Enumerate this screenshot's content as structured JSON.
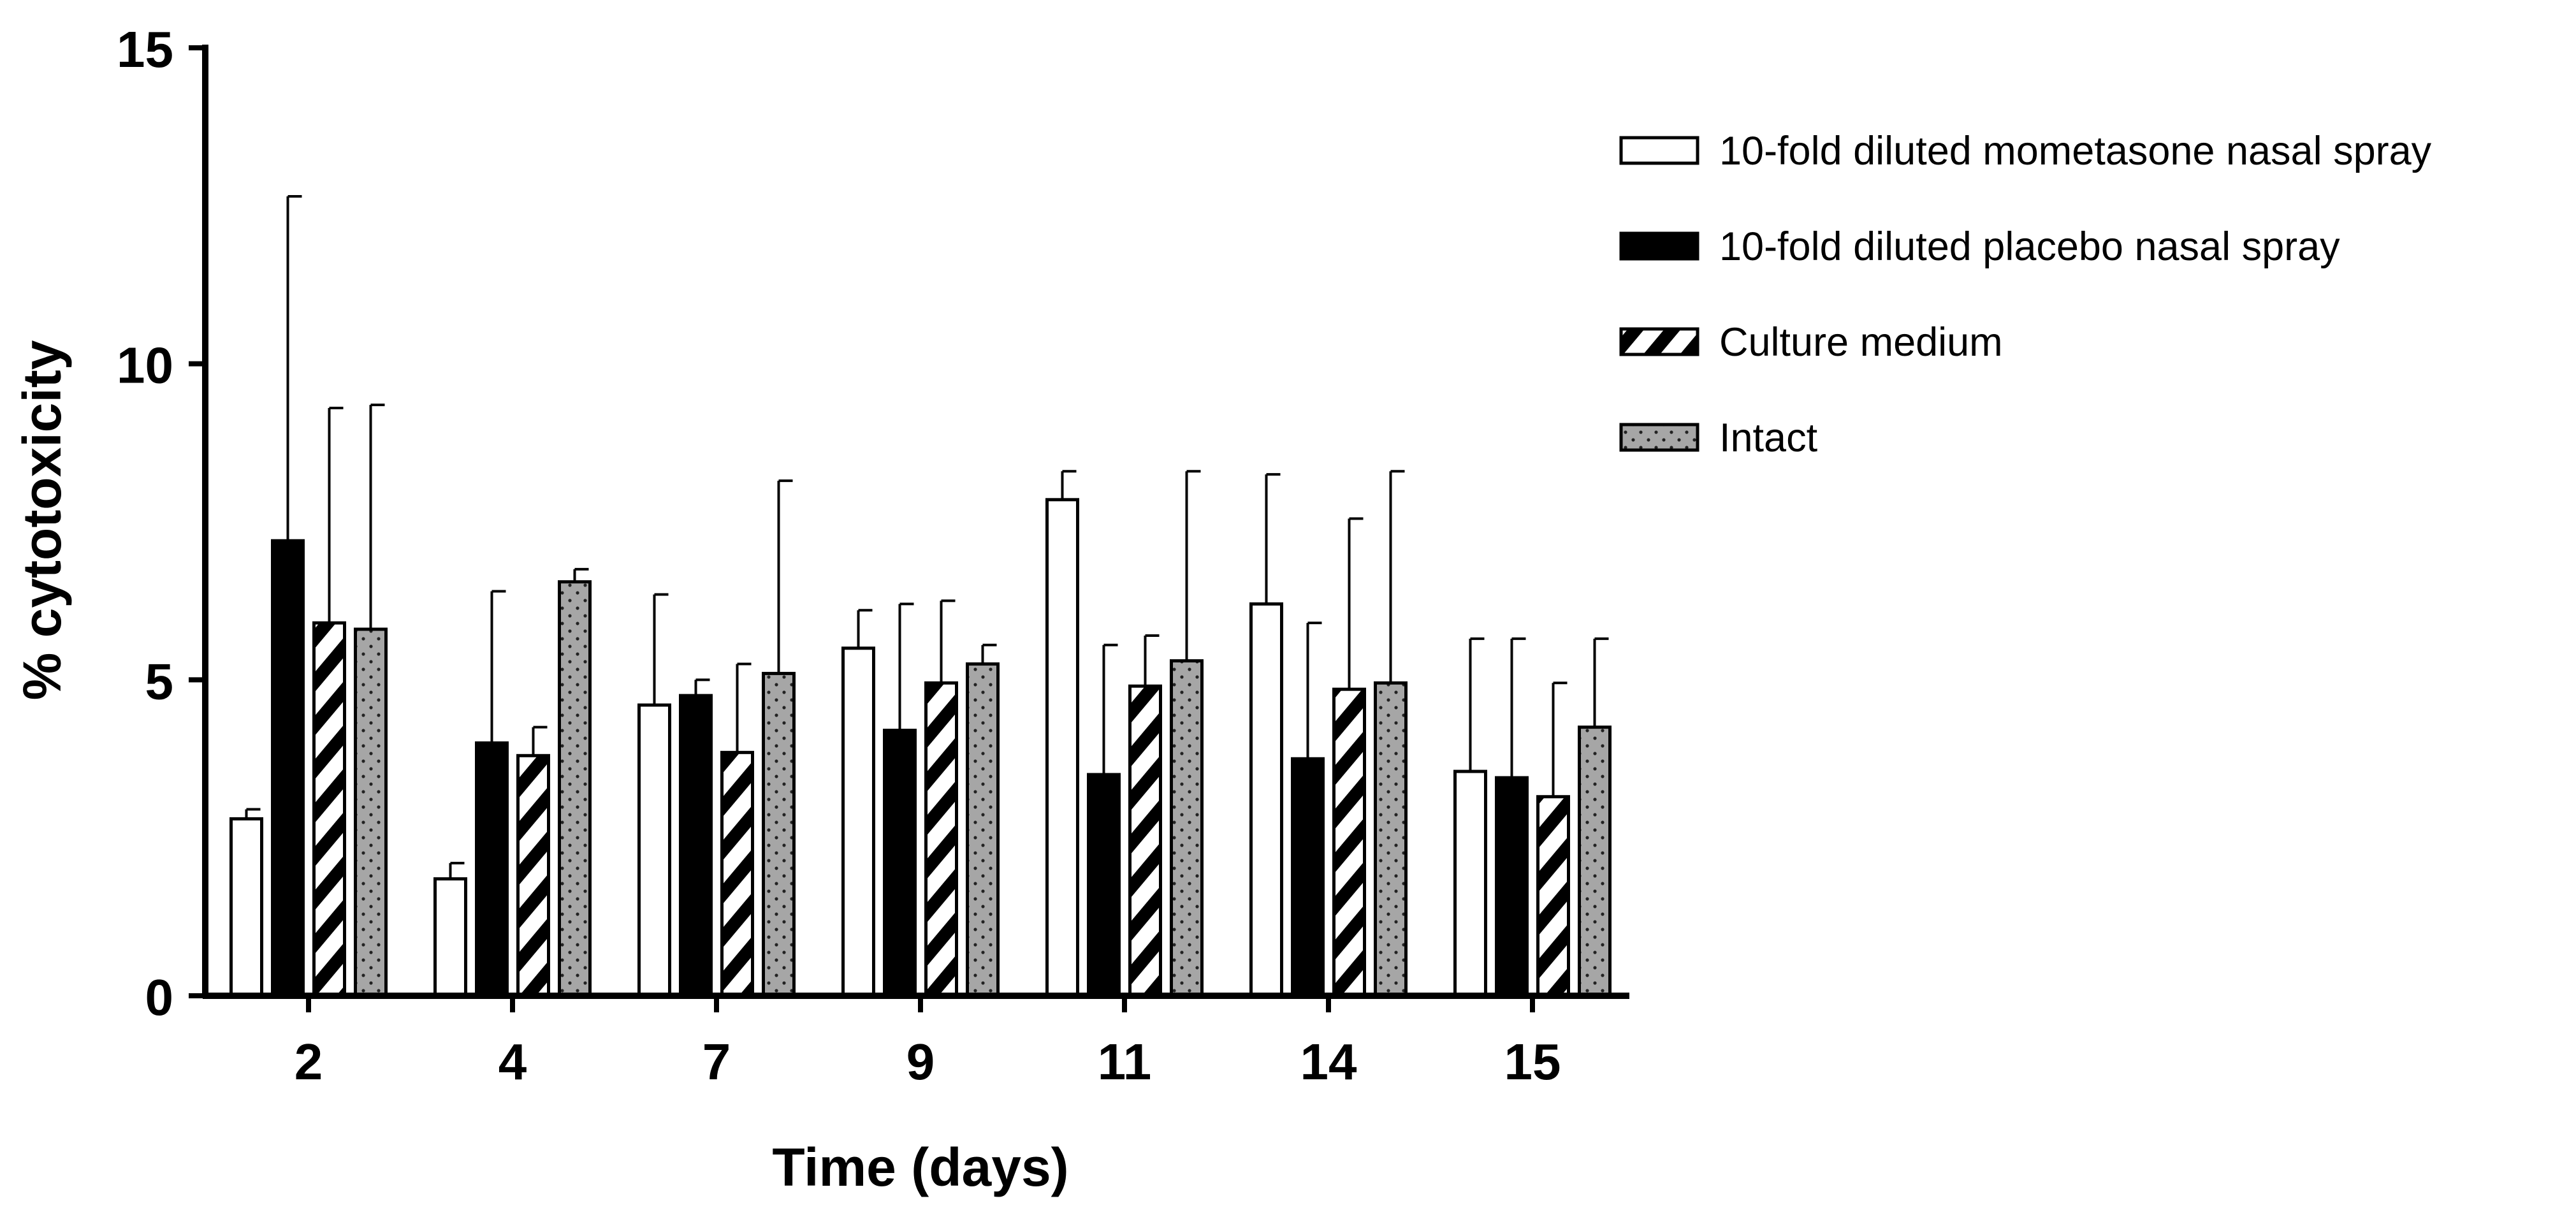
{
  "chart_data": {
    "type": "bar",
    "title": "",
    "xlabel": "Time (days)",
    "ylabel": "% cytotoxicity",
    "ylim": [
      0,
      15
    ],
    "yticks": [
      0,
      5,
      10,
      15
    ],
    "ytick_labels": [
      "0",
      "5",
      "10",
      "15"
    ],
    "categories": [
      "2",
      "4",
      "7",
      "9",
      "11",
      "14",
      "15"
    ],
    "grid": false,
    "legend_position": "top-right",
    "series": [
      {
        "name": "10-fold diluted mometasone nasal spray",
        "pattern": "white",
        "values": [
          2.8,
          1.85,
          4.6,
          5.5,
          7.85,
          6.2,
          3.55
        ],
        "errors": [
          0.15,
          0.25,
          1.75,
          0.6,
          0.45,
          2.05,
          2.1
        ]
      },
      {
        "name": "10-fold diluted placebo nasal spray",
        "pattern": "black",
        "values": [
          7.2,
          4.0,
          4.75,
          4.2,
          3.5,
          3.75,
          3.45
        ],
        "errors": [
          5.45,
          2.4,
          0.25,
          2.0,
          2.05,
          2.15,
          2.2
        ]
      },
      {
        "name": "Culture medium",
        "pattern": "hatched",
        "values": [
          5.9,
          3.8,
          3.85,
          4.95,
          4.9,
          4.85,
          3.15
        ],
        "errors": [
          3.4,
          0.45,
          1.4,
          1.3,
          0.8,
          2.7,
          1.8
        ]
      },
      {
        "name": "Intact",
        "pattern": "dotted",
        "values": [
          5.8,
          6.55,
          5.1,
          5.25,
          5.3,
          4.95,
          4.25
        ],
        "errors": [
          3.55,
          0.2,
          3.05,
          0.3,
          3.0,
          3.35,
          1.4
        ]
      }
    ]
  }
}
